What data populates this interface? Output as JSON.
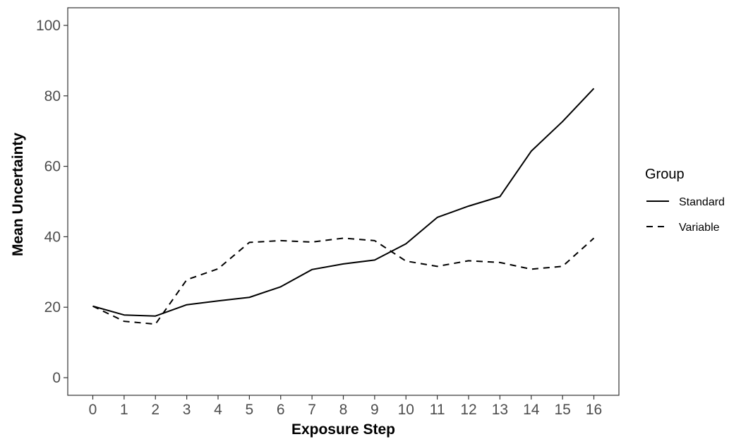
{
  "chart_data": {
    "type": "line",
    "title": "",
    "xlabel": "Exposure Step",
    "ylabel": "Mean Uncertainty",
    "x": [
      0,
      1,
      2,
      3,
      4,
      5,
      6,
      7,
      8,
      9,
      10,
      11,
      12,
      13,
      14,
      15,
      16
    ],
    "xticks": [
      "0",
      "1",
      "2",
      "3",
      "4",
      "5",
      "6",
      "7",
      "8",
      "9",
      "10",
      "11",
      "12",
      "13",
      "14",
      "15",
      "16"
    ],
    "yticks": [
      "0",
      "20",
      "40",
      "60",
      "80",
      "100"
    ],
    "xlim": [
      -0.8,
      16.8
    ],
    "ylim": [
      -5,
      105
    ],
    "grid": false,
    "legend": {
      "title": "Group",
      "position": "right"
    },
    "series": [
      {
        "name": "Standard",
        "line_style": "solid",
        "color": "#000000",
        "values": [
          20.3,
          17.8,
          17.5,
          20.7,
          21.8,
          22.8,
          25.8,
          30.7,
          32.3,
          33.4,
          38.0,
          45.5,
          48.7,
          51.4,
          64.3,
          72.7,
          82.1
        ]
      },
      {
        "name": "Variable",
        "line_style": "dashed",
        "color": "#000000",
        "values": [
          20.3,
          16.0,
          15.2,
          27.8,
          30.9,
          38.4,
          38.9,
          38.5,
          39.6,
          38.9,
          33.1,
          31.6,
          33.2,
          32.7,
          30.8,
          31.6,
          39.6
        ]
      }
    ]
  }
}
